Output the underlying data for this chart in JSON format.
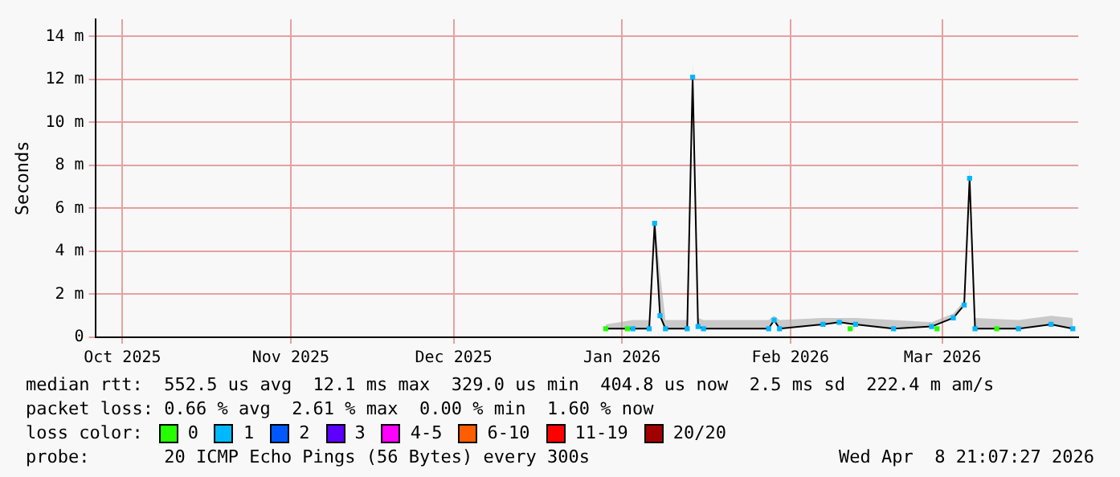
{
  "chart_data": {
    "type": "line",
    "ylabel": "Seconds",
    "legend_title": "loss color:",
    "legend": "bottom",
    "grid": true,
    "line_style": "solid",
    "x": [
      "2025-12-29",
      "2026-01-03",
      "2026-01-06",
      "2026-01-07",
      "2026-01-08",
      "2026-01-09",
      "2026-01-13",
      "2026-01-14",
      "2026-01-15",
      "2026-01-16",
      "2026-01-28",
      "2026-01-29",
      "2026-01-30",
      "2026-02-07",
      "2026-02-10",
      "2026-02-13",
      "2026-02-20",
      "2026-02-27",
      "2026-03-03",
      "2026-03-05",
      "2026-03-06",
      "2026-03-07",
      "2026-03-15",
      "2026-03-21",
      "2026-03-25"
    ],
    "series": [
      {
        "color": "#000000",
        "marker": "none",
        "values": [
          0.4,
          0.4,
          0.4,
          5.3,
          1.0,
          0.4,
          0.4,
          12.1,
          0.5,
          0.4,
          0.4,
          0.8,
          0.4,
          0.6,
          0.7,
          0.6,
          0.4,
          0.5,
          0.9,
          1.5,
          7.4,
          0.4,
          0.4,
          0.6,
          0.4
        ],
        "lower": [
          0.4,
          0.4,
          0.4,
          5.3,
          1.0,
          0.4,
          0.4,
          12.1,
          0.5,
          0.4,
          0.4,
          0.8,
          0.4,
          0.6,
          0.7,
          0.6,
          0.4,
          0.5,
          0.9,
          1.5,
          7.4,
          0.4,
          0.4,
          0.6,
          0.4
        ],
        "upper": [
          0.6,
          0.8,
          0.8,
          5.5,
          3.0,
          0.8,
          0.8,
          12.7,
          0.9,
          0.8,
          0.8,
          1.0,
          0.8,
          0.9,
          0.9,
          0.9,
          0.8,
          0.7,
          1.1,
          1.7,
          7.9,
          0.9,
          0.8,
          1.0,
          0.9
        ]
      },
      {
        "name": "0",
        "type": "scatter",
        "marker": "square",
        "color": "#26ff00",
        "x": [
          "2025-12-29",
          "2026-01-02",
          "2026-02-12",
          "2026-02-28",
          "2026-03-11"
        ],
        "values": [
          0.4,
          0.4,
          0.4,
          0.4,
          0.4
        ]
      },
      {
        "name": "1",
        "type": "scatter",
        "marker": "square",
        "color": "#00b8ff",
        "values": [
          null,
          0.4,
          0.4,
          5.3,
          1.0,
          0.4,
          0.4,
          12.1,
          0.5,
          0.4,
          0.4,
          0.8,
          0.4,
          0.6,
          0.7,
          0.6,
          0.4,
          0.5,
          0.9,
          1.5,
          7.4,
          0.4,
          0.4,
          0.6,
          0.4
        ]
      },
      {
        "name": "2",
        "type": "scatter",
        "marker": "square",
        "color": "#0059ff",
        "values": [
          null,
          null,
          null,
          null,
          null,
          null,
          null,
          null,
          null,
          null,
          null,
          null,
          null,
          null,
          null,
          null,
          null,
          null,
          null,
          null,
          null,
          null,
          null,
          null,
          null
        ]
      },
      {
        "name": "3",
        "type": "scatter",
        "marker": "square",
        "color": "#5e00ff",
        "values": [
          null,
          null,
          null,
          null,
          null,
          null,
          null,
          null,
          null,
          null,
          null,
          null,
          null,
          null,
          null,
          null,
          null,
          null,
          null,
          null,
          null,
          null,
          null,
          null,
          null
        ]
      },
      {
        "name": "4-5",
        "type": "scatter",
        "marker": "square",
        "color": "#ff00ff",
        "values": [
          null,
          null,
          null,
          null,
          null,
          null,
          null,
          null,
          null,
          null,
          null,
          null,
          null,
          null,
          null,
          null,
          null,
          null,
          null,
          null,
          null,
          null,
          null,
          null,
          null
        ]
      },
      {
        "name": "6-10",
        "type": "scatter",
        "marker": "square",
        "color": "#ff5e00",
        "values": [
          null,
          null,
          null,
          null,
          null,
          null,
          null,
          null,
          null,
          null,
          null,
          null,
          null,
          null,
          null,
          null,
          null,
          null,
          null,
          null,
          null,
          null,
          null,
          null,
          null
        ]
      },
      {
        "name": "11-19",
        "type": "scatter",
        "marker": "square",
        "color": "#ff0000",
        "values": [
          null,
          null,
          null,
          null,
          null,
          null,
          null,
          null,
          null,
          null,
          null,
          null,
          null,
          null,
          null,
          null,
          null,
          null,
          null,
          null,
          null,
          null,
          null,
          null,
          null
        ]
      },
      {
        "name": "20/20",
        "type": "scatter",
        "marker": "square",
        "color": "#a10000",
        "values": [
          null,
          null,
          null,
          null,
          null,
          null,
          null,
          null,
          null,
          null,
          null,
          null,
          null,
          null,
          null,
          null,
          null,
          null,
          null,
          null,
          null,
          null,
          null,
          null,
          null
        ]
      }
    ],
    "xlim": [
      "2025-09-26",
      "2026-03-26"
    ],
    "xticks": [
      {
        "value": "2025-10-01",
        "label": "Oct 2025"
      },
      {
        "value": "2025-11-01",
        "label": "Nov 2025"
      },
      {
        "value": "2025-12-01",
        "label": "Dec 2025"
      },
      {
        "value": "2026-01-01",
        "label": "Jan 2026"
      },
      {
        "value": "2026-02-01",
        "label": "Feb 2026"
      },
      {
        "value": "2026-03-01",
        "label": "Mar 2026"
      }
    ],
    "ylim": [
      0,
      14.8
    ],
    "yticks": [
      0,
      {
        "value": 2,
        "label": "2 m"
      },
      {
        "value": 4,
        "label": "4 m"
      },
      {
        "value": 6,
        "label": "6 m"
      },
      {
        "value": 8,
        "label": "8 m"
      },
      {
        "value": 10,
        "label": "10 m"
      },
      {
        "value": 12,
        "label": "12 m"
      },
      {
        "value": 14,
        "label": "14 m"
      }
    ],
    "annotations": [
      "median rtt:  552.5 us avg  12.1 ms max  329.0 us min  404.8 us now  2.5 ms sd  222.4 m am/s",
      "packet loss: 0.66 % avg  2.61 % max  0.00 % min  1.60 % now",
      "probe:       20 ICMP Echo Pings (56 Bytes) every 300s",
      "Wed Apr  8 21:07:27 2026"
    ]
  }
}
